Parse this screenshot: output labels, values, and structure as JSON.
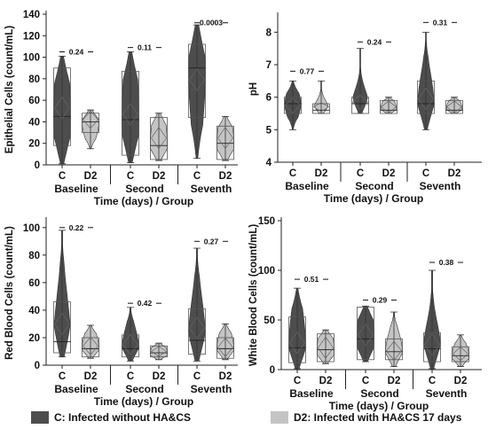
{
  "colors": {
    "C": "#4d4d4d",
    "D2": "#c4c4c4",
    "box": "#555555",
    "axis": "#222222"
  },
  "legend": {
    "c_label": "C: Infected without HA&CS",
    "d2_label": "D2: Infected with HA&CS 17 days"
  },
  "chart_data": [
    {
      "type": "violin-box",
      "ylabel": "Epithelial Cells (count/mL)",
      "xlabel": "Time (days) / Group",
      "ylim": [
        0,
        140
      ],
      "yticks": [
        0,
        20,
        40,
        60,
        80,
        100,
        120,
        140
      ],
      "timepoints": [
        "Baseline",
        "Second",
        "Seventh"
      ],
      "groups": [
        "C",
        "D2"
      ],
      "pvalues": [
        "0.24",
        "0.11",
        "0.0003"
      ],
      "pvalue_y": [
        105,
        109,
        132
      ],
      "C": [
        {
          "min": 1,
          "q1": 18,
          "median": 45,
          "q3": 90,
          "max": 101,
          "mean": 53
        },
        {
          "min": 2,
          "q1": 9,
          "median": 42,
          "q3": 87,
          "max": 105,
          "mean": 47
        },
        {
          "min": 6,
          "q1": 44,
          "median": 90,
          "q3": 112,
          "max": 130,
          "mean": 79
        }
      ],
      "D2": [
        {
          "min": 15,
          "q1": 30,
          "median": 40,
          "q3": 48,
          "max": 51,
          "mean": 42
        },
        {
          "min": 4,
          "q1": 5,
          "median": 18,
          "q3": 44,
          "max": 48,
          "mean": 25
        },
        {
          "min": 4,
          "q1": 5,
          "median": 20,
          "q3": 36,
          "max": 45,
          "mean": 25
        }
      ]
    },
    {
      "type": "violin-box",
      "ylabel": "pH",
      "xlabel": "Time (days) / Group",
      "ylim": [
        4,
        8.5
      ],
      "yticks": [
        4,
        5,
        6,
        7,
        8
      ],
      "timepoints": [
        "Baseline",
        "Second",
        "Seventh"
      ],
      "groups": [
        "C",
        "D2"
      ],
      "pvalues": [
        "0.77",
        "0.24",
        "0.31"
      ],
      "pvalue_y": [
        6.8,
        7.7,
        8.3
      ],
      "C": [
        {
          "min": 5.0,
          "q1": 5.5,
          "median": 5.8,
          "q3": 6.0,
          "max": 6.5,
          "mean": 5.75
        },
        {
          "min": 5.5,
          "q1": 5.5,
          "median": 5.8,
          "q3": 6.0,
          "max": 7.5,
          "mean": 5.85
        },
        {
          "min": 5.0,
          "q1": 5.5,
          "median": 5.8,
          "q3": 6.5,
          "max": 8.0,
          "mean": 5.95
        }
      ],
      "D2": [
        {
          "min": 5.5,
          "q1": 5.5,
          "median": 5.6,
          "q3": 5.8,
          "max": 6.5,
          "mean": 5.7
        },
        {
          "min": 5.5,
          "q1": 5.5,
          "median": 5.6,
          "q3": 5.9,
          "max": 6.0,
          "mean": 5.7
        },
        {
          "min": 5.5,
          "q1": 5.5,
          "median": 5.6,
          "q3": 5.9,
          "max": 6.0,
          "mean": 5.7
        }
      ]
    },
    {
      "type": "violin-box",
      "ylabel": "Red Blood Cells (count/mL)",
      "xlabel": "Time (days) / Group",
      "ylim": [
        0,
        105
      ],
      "yticks": [
        0,
        20,
        40,
        60,
        80,
        100
      ],
      "timepoints": [
        "Baseline",
        "Second",
        "Seventh"
      ],
      "groups": [
        "C",
        "D2"
      ],
      "pvalues": [
        "0.22",
        "0.42",
        "0.27"
      ],
      "pvalue_y": [
        100,
        45,
        90
      ],
      "C": [
        {
          "min": 6,
          "q1": 9,
          "median": 17,
          "q3": 46,
          "max": 98,
          "mean": 30
        },
        {
          "min": 3,
          "q1": 6,
          "median": 12,
          "q3": 22,
          "max": 42,
          "mean": 15
        },
        {
          "min": 3,
          "q1": 8,
          "median": 18,
          "q3": 41,
          "max": 85,
          "mean": 27
        }
      ],
      "D2": [
        {
          "min": 5,
          "q1": 6,
          "median": 12,
          "q3": 20,
          "max": 29,
          "mean": 14
        },
        {
          "min": 4,
          "q1": 6,
          "median": 9,
          "q3": 14,
          "max": 16,
          "mean": 10
        },
        {
          "min": 4,
          "q1": 5,
          "median": 12,
          "q3": 20,
          "max": 30,
          "mean": 13
        }
      ]
    },
    {
      "type": "violin-box",
      "ylabel": "White Blood Cells (count/mL)",
      "xlabel": "Time (days) / Group",
      "ylim": [
        0,
        150
      ],
      "yticks": [
        0,
        50,
        100,
        150
      ],
      "timepoints": [
        "Baseline",
        "Second",
        "Seventh"
      ],
      "groups": [
        "C",
        "D2"
      ],
      "pvalues": [
        "0.51",
        "0.29",
        "0.38"
      ],
      "pvalue_y": [
        91,
        70,
        108
      ],
      "C": [
        {
          "min": 1,
          "q1": 7,
          "median": 22,
          "q3": 53,
          "max": 82,
          "mean": 27
        },
        {
          "min": 8,
          "q1": 10,
          "median": 31,
          "q3": 63,
          "max": 64,
          "mean": 35
        },
        {
          "min": 1,
          "q1": 8,
          "median": 21,
          "q3": 37,
          "max": 100,
          "mean": 25
        }
      ],
      "D2": [
        {
          "min": 6,
          "q1": 8,
          "median": 20,
          "q3": 36,
          "max": 40,
          "mean": 22
        },
        {
          "min": 3,
          "q1": 10,
          "median": 18,
          "q3": 31,
          "max": 58,
          "mean": 19
        },
        {
          "min": 3,
          "q1": 8,
          "median": 14,
          "q3": 23,
          "max": 35,
          "mean": 16
        }
      ]
    }
  ]
}
